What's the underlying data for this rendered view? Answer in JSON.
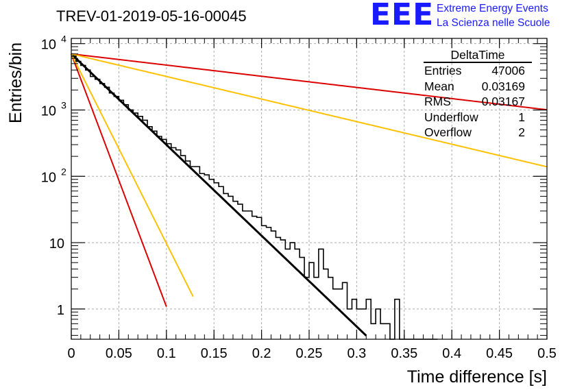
{
  "title": "TREV-01-2019-05-16-00045",
  "logo": {
    "mark": "EEE",
    "line1": "Extreme Energy Events",
    "line2": "La Scienza nelle Scuole"
  },
  "stats": {
    "title": "DeltaTime",
    "rows": [
      {
        "label": "Entries",
        "value": "47006"
      },
      {
        "label": "Mean",
        "value": "0.03169"
      },
      {
        "label": "RMS",
        "value": "0.03167"
      },
      {
        "label": "Underflow",
        "value": "1"
      },
      {
        "label": "Overflow",
        "value": "2"
      }
    ]
  },
  "colors": {
    "fit": "#000000",
    "histogram": "#000000",
    "red": "#dd0000",
    "yellow": "#ffc000",
    "grid": "#aaaaaa"
  },
  "chart_data": {
    "type": "line",
    "xlabel": "Time difference [s]",
    "ylabel": "Entries/bin",
    "xlim": [
      0,
      0.5
    ],
    "ylim": [
      0.35,
      12000
    ],
    "log_y": true,
    "grid": true,
    "x_ticks": [
      {
        "value": 0,
        "label": "0"
      },
      {
        "value": 0.05,
        "label": "0.05"
      },
      {
        "value": 0.1,
        "label": "0.1"
      },
      {
        "value": 0.15,
        "label": "0.15"
      },
      {
        "value": 0.2,
        "label": "0.2"
      },
      {
        "value": 0.25,
        "label": "0.25"
      },
      {
        "value": 0.3,
        "label": "0.3"
      },
      {
        "value": 0.35,
        "label": "0.35"
      },
      {
        "value": 0.4,
        "label": "0.4"
      },
      {
        "value": 0.45,
        "label": "0.45"
      },
      {
        "value": 0.5,
        "label": "0.5"
      }
    ],
    "y_ticks": [
      {
        "value": 1,
        "label": "1"
      },
      {
        "value": 10,
        "label": "10"
      },
      {
        "value": 100,
        "label": "10",
        "exp": "2"
      },
      {
        "value": 1000,
        "label": "10",
        "exp": "3"
      },
      {
        "value": 10000,
        "label": "10",
        "exp": "4"
      }
    ],
    "histogram": {
      "bin_width": 0.005,
      "counts": [
        6500,
        5400,
        4700,
        4000,
        3200,
        2900,
        2500,
        2200,
        1800,
        1600,
        1400,
        1200,
        1000,
        900,
        800,
        700,
        560,
        480,
        400,
        360,
        310,
        270,
        250,
        205,
        170,
        140,
        140,
        110,
        105,
        90,
        80,
        70,
        55,
        50,
        42,
        38,
        30,
        30,
        25,
        24,
        18,
        17,
        15,
        12,
        11,
        8,
        10,
        8,
        6,
        3,
        5,
        3,
        8,
        4,
        3,
        2,
        2,
        2.5,
        1,
        1.4,
        1,
        1,
        1.4,
        0.6,
        1,
        0.6,
        0.6,
        0,
        1.4,
        0,
        0,
        0,
        0,
        0,
        0,
        0,
        0
      ]
    },
    "curves": [
      {
        "color": "#000000",
        "A": 7000,
        "tau": 0.0317,
        "x_end": 0.31
      },
      {
        "color": "#dd0000",
        "A": 7000,
        "tau": 0.0114,
        "x_end": 0.1
      },
      {
        "color": "#ffc000",
        "A": 7000,
        "tau": 0.0152,
        "x_end": 0.128
      },
      {
        "color": "#dd0000",
        "A": 7000,
        "tau": 0.2578,
        "x_end": 0.5
      },
      {
        "color": "#ffc000",
        "A": 7000,
        "tau": 0.1276,
        "x_end": 0.5
      }
    ]
  }
}
